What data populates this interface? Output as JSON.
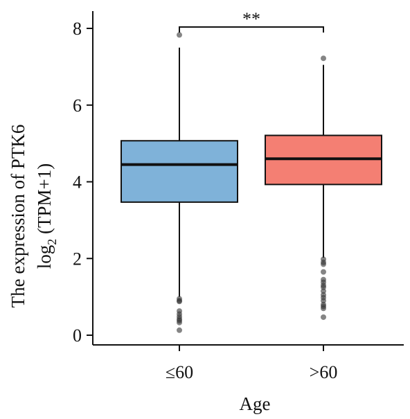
{
  "chart_data": {
    "type": "box",
    "ylabel_line1": "The expression of PTK6",
    "ylabel_line2": {
      "base": "log",
      "sub": "2",
      "rest": " (TPM+1)"
    },
    "xlabel": "Age",
    "ylim": [
      -0.2,
      8.35
    ],
    "yticks": [
      "0",
      "2",
      "4",
      "6",
      "8"
    ],
    "groups": [
      {
        "label": "≤60",
        "color": "#7fb2d9",
        "q1": 3.47,
        "median": 4.45,
        "q3": 5.07,
        "whisker_low": 1.0,
        "whisker_high": 7.5,
        "outliers": [
          7.83,
          0.95,
          0.9,
          0.88,
          0.63,
          0.55,
          0.48,
          0.42,
          0.38,
          0.33,
          0.13
        ]
      },
      {
        "label": ">60",
        "color": "#f47f73",
        "q1": 3.93,
        "median": 4.6,
        "q3": 5.21,
        "whisker_low": 2.02,
        "whisker_high": 7.05,
        "outliers": [
          7.22,
          1.98,
          1.9,
          1.85,
          1.65,
          1.45,
          1.38,
          1.3,
          1.25,
          1.15,
          1.05,
          0.98,
          0.9,
          0.8,
          0.75,
          0.7,
          0.47
        ]
      }
    ],
    "significance": {
      "label": "**",
      "between": [
        0,
        1
      ]
    }
  }
}
